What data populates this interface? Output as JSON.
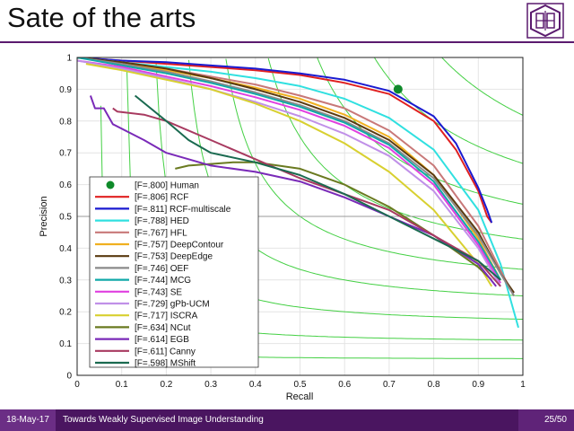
{
  "slide": {
    "title": "Sate of the arts",
    "footer_date": "18-May-17",
    "footer_title": "Towards Weakly Supervised Image Understanding",
    "page_number": "25/50",
    "logo_icon": "university-seal-icon"
  },
  "chart_data": {
    "type": "line",
    "xlabel": "Recall",
    "ylabel": "Precision",
    "xlim": [
      0,
      1
    ],
    "ylim": [
      0,
      1
    ],
    "xticks": [
      "0",
      "0.1",
      "0.2",
      "0.3",
      "0.4",
      "0.5",
      "0.6",
      "0.7",
      "0.8",
      "0.9",
      "1"
    ],
    "yticks": [
      "0",
      "0.1",
      "0.2",
      "0.3",
      "0.4",
      "0.5",
      "0.6",
      "0.7",
      "0.8",
      "0.9",
      "1"
    ],
    "grid": true,
    "legend_position": "bottom-left",
    "reference_line_y": 0.5,
    "iso_f_levels": [
      0.1,
      0.2,
      0.3,
      0.4,
      0.5,
      0.6,
      0.7,
      0.8,
      0.9
    ],
    "iso_f_color": "#44d044",
    "human_point": {
      "name": "[F=.800] Human",
      "x": 0.72,
      "y": 0.9,
      "color": "#0f8a2a"
    },
    "series": [
      {
        "name": "[F=.806] RCF",
        "color": "#e02020",
        "x": [
          0.0,
          0.1,
          0.2,
          0.3,
          0.4,
          0.5,
          0.6,
          0.7,
          0.8,
          0.85,
          0.9,
          0.92,
          0.93
        ],
        "y": [
          1.0,
          0.99,
          0.98,
          0.97,
          0.96,
          0.945,
          0.92,
          0.885,
          0.8,
          0.71,
          0.58,
          0.5,
          0.48
        ]
      },
      {
        "name": "[F=.811] RCF-multiscale",
        "color": "#1a1ad0",
        "x": [
          0.0,
          0.1,
          0.2,
          0.3,
          0.4,
          0.5,
          0.6,
          0.7,
          0.8,
          0.85,
          0.9,
          0.92,
          0.93
        ],
        "y": [
          1.0,
          0.99,
          0.985,
          0.975,
          0.965,
          0.95,
          0.93,
          0.895,
          0.815,
          0.73,
          0.59,
          0.52,
          0.48
        ]
      },
      {
        "name": "[F=.788] HED",
        "color": "#30e0e0",
        "x": [
          0.0,
          0.1,
          0.2,
          0.3,
          0.4,
          0.5,
          0.6,
          0.7,
          0.8,
          0.9,
          0.95,
          0.99
        ],
        "y": [
          1.0,
          0.985,
          0.97,
          0.955,
          0.935,
          0.91,
          0.87,
          0.81,
          0.71,
          0.52,
          0.35,
          0.15
        ]
      },
      {
        "name": "[F=.767] HFL",
        "color": "#c87878",
        "x": [
          0.0,
          0.1,
          0.2,
          0.3,
          0.4,
          0.5,
          0.6,
          0.7,
          0.8,
          0.9,
          0.95,
          0.98
        ],
        "y": [
          1.0,
          0.985,
          0.965,
          0.94,
          0.915,
          0.88,
          0.84,
          0.77,
          0.66,
          0.47,
          0.33,
          0.25
        ]
      },
      {
        "name": "[F=.757] DeepContour",
        "color": "#f0b020",
        "x": [
          0.0,
          0.1,
          0.2,
          0.3,
          0.4,
          0.5,
          0.6,
          0.7,
          0.8,
          0.9,
          0.95
        ],
        "y": [
          1.0,
          0.98,
          0.96,
          0.935,
          0.905,
          0.87,
          0.82,
          0.75,
          0.63,
          0.43,
          0.3
        ]
      },
      {
        "name": "[F=.753] DeepEdge",
        "color": "#5a3a10",
        "x": [
          0.0,
          0.1,
          0.2,
          0.3,
          0.4,
          0.5,
          0.6,
          0.7,
          0.8,
          0.9,
          0.95,
          0.98
        ],
        "y": [
          1.0,
          0.985,
          0.965,
          0.935,
          0.9,
          0.86,
          0.81,
          0.74,
          0.63,
          0.45,
          0.32,
          0.26
        ]
      },
      {
        "name": "[F=.746] OEF",
        "color": "#8a8a8a",
        "x": [
          0.0,
          0.1,
          0.2,
          0.3,
          0.4,
          0.5,
          0.6,
          0.7,
          0.8,
          0.9,
          0.95,
          0.98
        ],
        "y": [
          1.0,
          0.98,
          0.955,
          0.925,
          0.89,
          0.85,
          0.8,
          0.73,
          0.62,
          0.44,
          0.32,
          0.25
        ]
      },
      {
        "name": "[F=.744] MCG",
        "color": "#10a8a8",
        "x": [
          0.0,
          0.1,
          0.2,
          0.3,
          0.4,
          0.5,
          0.6,
          0.7,
          0.8,
          0.9,
          0.95
        ],
        "y": [
          1.0,
          0.975,
          0.95,
          0.92,
          0.885,
          0.845,
          0.795,
          0.725,
          0.61,
          0.42,
          0.3
        ]
      },
      {
        "name": "[F=.743] SE",
        "color": "#e040e0",
        "x": [
          0.0,
          0.1,
          0.2,
          0.3,
          0.4,
          0.5,
          0.6,
          0.7,
          0.8,
          0.9,
          0.95
        ],
        "y": [
          0.99,
          0.97,
          0.94,
          0.91,
          0.875,
          0.835,
          0.785,
          0.715,
          0.6,
          0.41,
          0.29
        ]
      },
      {
        "name": "[F=.729] gPb-UCM",
        "color": "#c090e8",
        "x": [
          0.0,
          0.1,
          0.2,
          0.3,
          0.4,
          0.5,
          0.6,
          0.7,
          0.8,
          0.9,
          0.95
        ],
        "y": [
          0.99,
          0.965,
          0.935,
          0.9,
          0.86,
          0.815,
          0.76,
          0.69,
          0.58,
          0.4,
          0.28
        ]
      },
      {
        "name": "[F=.717] ISCRA",
        "color": "#d8d030",
        "x": [
          0.02,
          0.1,
          0.2,
          0.3,
          0.4,
          0.5,
          0.6,
          0.7,
          0.8,
          0.9,
          0.93
        ],
        "y": [
          0.98,
          0.96,
          0.93,
          0.9,
          0.855,
          0.8,
          0.73,
          0.64,
          0.52,
          0.35,
          0.28
        ]
      },
      {
        "name": "[F=.634] NCut",
        "color": "#6a7a20",
        "x": [
          0.22,
          0.25,
          0.3,
          0.35,
          0.4,
          0.5,
          0.6,
          0.7,
          0.8,
          0.9,
          0.93
        ],
        "y": [
          0.65,
          0.66,
          0.665,
          0.67,
          0.67,
          0.65,
          0.6,
          0.53,
          0.44,
          0.34,
          0.3
        ]
      },
      {
        "name": "[F=.614] EGB",
        "color": "#7a2ab8",
        "x": [
          0.03,
          0.04,
          0.06,
          0.08,
          0.15,
          0.2,
          0.3,
          0.4,
          0.5,
          0.6,
          0.7,
          0.8,
          0.9,
          0.94
        ],
        "y": [
          0.88,
          0.84,
          0.84,
          0.79,
          0.74,
          0.7,
          0.66,
          0.64,
          0.61,
          0.56,
          0.5,
          0.44,
          0.35,
          0.28
        ]
      },
      {
        "name": "[F=.611] Canny",
        "color": "#a83a60",
        "x": [
          0.08,
          0.09,
          0.15,
          0.2,
          0.3,
          0.4,
          0.5,
          0.6,
          0.7,
          0.8,
          0.9,
          0.95
        ],
        "y": [
          0.84,
          0.83,
          0.82,
          0.8,
          0.74,
          0.68,
          0.62,
          0.57,
          0.52,
          0.44,
          0.36,
          0.28
        ]
      },
      {
        "name": "[F=.598] MShift",
        "color": "#1a6a50",
        "x": [
          0.13,
          0.2,
          0.25,
          0.3,
          0.4,
          0.5,
          0.6,
          0.7,
          0.8,
          0.9,
          0.95
        ],
        "y": [
          0.88,
          0.8,
          0.74,
          0.7,
          0.67,
          0.63,
          0.57,
          0.5,
          0.43,
          0.36,
          0.3
        ]
      }
    ]
  }
}
